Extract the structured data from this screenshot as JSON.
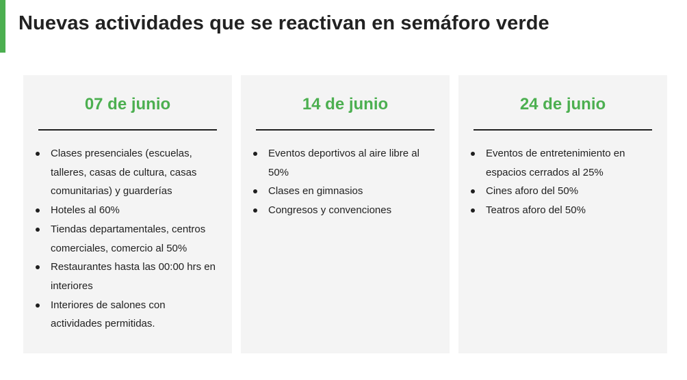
{
  "header": {
    "title": "Nuevas actividades que se reactivan en semáforo verde",
    "accent_color": "#4caf50"
  },
  "cards": [
    {
      "date": "07 de junio",
      "items": [
        "Clases presenciales (escuelas, talleres, casas de cultura, casas comunitarias) y guarderías",
        "Hoteles al 60%",
        "Tiendas departamentales, centros comerciales, comercio al 50%",
        "Restaurantes hasta las 00:00 hrs en interiores",
        "Interiores de salones con actividades permitidas."
      ]
    },
    {
      "date": "14 de junio",
      "items": [
        "Eventos deportivos al aire libre al 50%",
        "Clases en gimnasios",
        "Congresos y convenciones"
      ]
    },
    {
      "date": "24 de junio",
      "items": [
        "Eventos de entretenimiento en espacios cerrados al 25%",
        "Cines aforo del 50%",
        "Teatros aforo del 50%"
      ]
    }
  ],
  "colors": {
    "date_text": "#4caf50",
    "card_background": "#f4f4f4",
    "text": "#1f1f1f"
  }
}
